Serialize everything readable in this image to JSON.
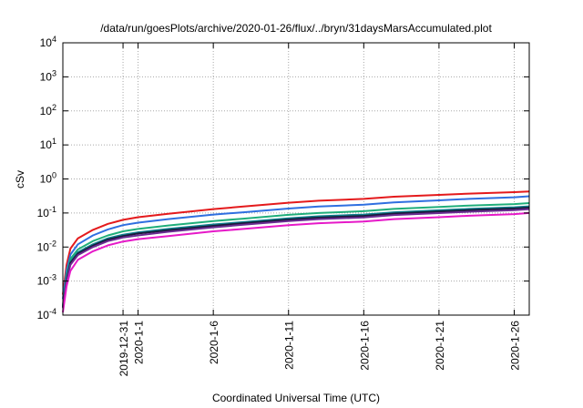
{
  "chart_data": {
    "type": "line",
    "title": "/data/run/goesPlots/archive/2020-01-26/flux/../bryn/31daysMarsAccumulated.plot",
    "xlabel": "Coordinated Universal Time (UTC)",
    "ylabel": "cSv",
    "y_scale": "log",
    "ylim": [
      "1e-4",
      "1e4"
    ],
    "xlim": [
      "2019-12-27",
      "2020-01-27"
    ],
    "grid": true,
    "y_ticks": [
      {
        "base": "10",
        "exp": "-4",
        "value": "1e-4"
      },
      {
        "base": "10",
        "exp": "-3",
        "value": "1e-3"
      },
      {
        "base": "10",
        "exp": "-2",
        "value": "1e-2"
      },
      {
        "base": "10",
        "exp": "-1",
        "value": "1e-1"
      },
      {
        "base": "10",
        "exp": "0",
        "value": "1e0"
      },
      {
        "base": "10",
        "exp": "1",
        "value": "1e1"
      },
      {
        "base": "10",
        "exp": "2",
        "value": "1e2"
      },
      {
        "base": "10",
        "exp": "3",
        "value": "1e3"
      },
      {
        "base": "10",
        "exp": "4",
        "value": "1e4"
      }
    ],
    "x_ticks": [
      {
        "label": "2019-12-31",
        "date": "2019-12-31"
      },
      {
        "label": "2020-1-1",
        "date": "2020-01-01"
      },
      {
        "label": "2020-1-6",
        "date": "2020-01-06"
      },
      {
        "label": "2020-1-11",
        "date": "2020-01-11"
      },
      {
        "label": "2020-1-16",
        "date": "2020-01-16"
      },
      {
        "label": "2020-1-21",
        "date": "2020-01-21"
      },
      {
        "label": "2020-1-26",
        "date": "2020-01-26"
      }
    ],
    "x": [
      "2019-12-27",
      "2019-12-27T06:00",
      "2019-12-27T12:00",
      "2019-12-28",
      "2019-12-29",
      "2019-12-30",
      "2019-12-31",
      "2020-01-01",
      "2020-01-03",
      "2020-01-06",
      "2020-01-08",
      "2020-01-11",
      "2020-01-13",
      "2020-01-16",
      "2020-01-18",
      "2020-01-21",
      "2020-01-23",
      "2020-01-26",
      "2020-01-27"
    ],
    "series": [
      {
        "color": "#e41a1c",
        "values": [
          0.0004,
          0.003,
          0.009,
          0.018,
          0.032,
          0.048,
          0.063,
          0.075,
          0.095,
          0.13,
          0.155,
          0.2,
          0.23,
          0.26,
          0.3,
          0.34,
          0.37,
          0.41,
          0.43
        ]
      },
      {
        "color": "#2f6fe0",
        "values": [
          0.0003,
          0.002,
          0.006,
          0.012,
          0.022,
          0.033,
          0.044,
          0.052,
          0.066,
          0.09,
          0.105,
          0.135,
          0.155,
          0.175,
          0.205,
          0.235,
          0.26,
          0.29,
          0.31
        ]
      },
      {
        "color": "#1fae7a",
        "values": [
          0.0002,
          0.0015,
          0.0045,
          0.0085,
          0.015,
          0.022,
          0.029,
          0.034,
          0.043,
          0.058,
          0.068,
          0.088,
          0.1,
          0.113,
          0.132,
          0.15,
          0.165,
          0.183,
          0.195
        ]
      },
      {
        "color": "#0e7d8c",
        "values": [
          0.00018,
          0.0012,
          0.0037,
          0.007,
          0.012,
          0.018,
          0.023,
          0.027,
          0.034,
          0.046,
          0.054,
          0.07,
          0.08,
          0.09,
          0.105,
          0.12,
          0.132,
          0.147,
          0.157
        ]
      },
      {
        "color": "#1a1a3a",
        "values": [
          0.00017,
          0.0011,
          0.0034,
          0.0064,
          0.011,
          0.0165,
          0.021,
          0.025,
          0.031,
          0.042,
          0.05,
          0.064,
          0.073,
          0.082,
          0.096,
          0.11,
          0.121,
          0.135,
          0.144
        ]
      },
      {
        "color": "#6a2c91",
        "values": [
          0.00016,
          0.001,
          0.003,
          0.0058,
          0.01,
          0.015,
          0.019,
          0.022,
          0.028,
          0.038,
          0.045,
          0.058,
          0.066,
          0.074,
          0.087,
          0.099,
          0.109,
          0.121,
          0.13
        ]
      },
      {
        "color": "#e619c8",
        "values": [
          0.00012,
          0.0007,
          0.002,
          0.0042,
          0.0075,
          0.0112,
          0.0145,
          0.017,
          0.021,
          0.029,
          0.034,
          0.044,
          0.05,
          0.056,
          0.066,
          0.075,
          0.083,
          0.093,
          0.1
        ]
      }
    ]
  }
}
